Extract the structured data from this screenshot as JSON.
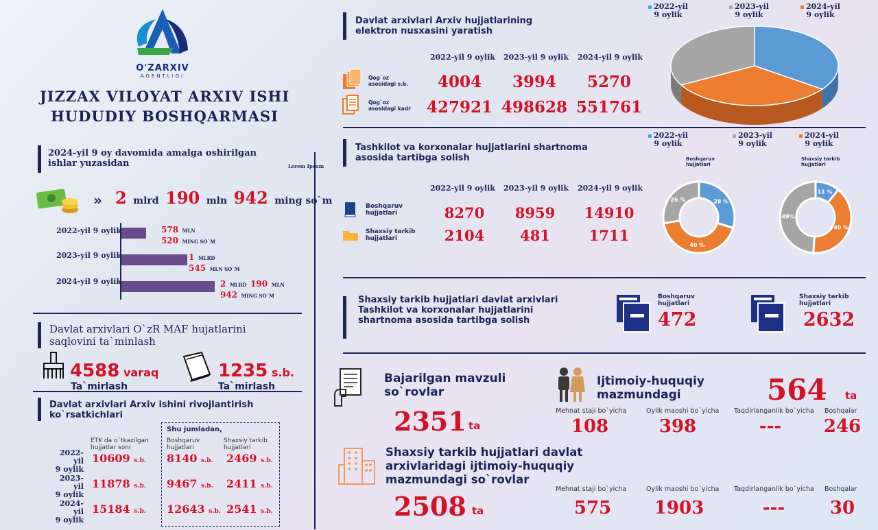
{
  "logo": {
    "name": "O'ZARXIV",
    "sub": "AGENTLIGI"
  },
  "org": {
    "line1": "JIZZAX VILOYAT ARXIV ISHI",
    "line2": "HUDUDIY BOSHQARMASI"
  },
  "left": {
    "s1_title": "2024-yil 9 oy davomida amalga oshirilgan ishlar yuzasidan",
    "lorem": "Lorem Ipsum",
    "total": {
      "a": "2",
      "b": "mlrd",
      "c": "190",
      "d": "mln",
      "e": "942",
      "f": "ming so`m"
    },
    "bars": [
      {
        "label": "2022-yil 9 oylik",
        "value_mln": 578.52,
        "v1": "578",
        "u1": "MLN",
        "v2": "520",
        "u2": "MING SO`M"
      },
      {
        "label": "2023-yil 9 oylik",
        "value_mln": 1545,
        "v1": "1",
        "u1": "MLRD",
        "v2": "545",
        "u2": "MLN SO`M"
      },
      {
        "label": "2024-yil 9 oylik",
        "value_mln": 2190.942,
        "v1": "2",
        "u1": "MLRD",
        "v1b": "190",
        "u1b": "MLN",
        "v2": "942",
        "u2": "MING SO`M"
      }
    ],
    "s2_title": "Davlat arxivlari O`zR MAF hujatlarini saqlovini ta`minlash",
    "s2": {
      "n1": "4588",
      "u1": "varaq",
      "c1": "Ta`mirlash",
      "n2": "1235",
      "u2": "s.b.",
      "c2": "Ta`mirlash"
    },
    "s3_title": "Davlat arxivlari Arxiv ishini rivojlantirish ko`rsatkichlari",
    "s3": {
      "col1": "ETK da o`tkazilgan hujjatlar soni",
      "shu": "Shu jumladan,",
      "col2": "Boshqaruv hujjatlari",
      "col3": "Shaxsiy tarkib hujjatlari",
      "unit": "s.b.",
      "rows": [
        {
          "y1": "2022-yil",
          "y2": "9 oylik",
          "a": "10609",
          "b": "8140",
          "c": "2469"
        },
        {
          "y1": "2023-yil",
          "y2": "9 oylik",
          "a": "11878",
          "b": "9467",
          "c": "2411"
        },
        {
          "y1": "2024-yil",
          "y2": "9 oylik",
          "a": "15184",
          "b": "12643",
          "c": "2541"
        }
      ]
    }
  },
  "right": {
    "years": [
      "2022-yil 9 oylik",
      "2023-yil 9 oylik",
      "2024-yil 9 oylik"
    ],
    "legend": [
      {
        "y": "2022-yil",
        "p": "9 oylik",
        "color": "#3fa7dc"
      },
      {
        "y": "2023-yil",
        "p": "9 oylik",
        "color": "#a8a8a8"
      },
      {
        "y": "2024-yil",
        "p": "9 oylik",
        "color": "#f07c2b"
      }
    ],
    "p1": {
      "title": "Davlat arxivlari Arxiv hujjatlarining elektron nusxasini yaratish",
      "r1": {
        "label": "Qog`oz asosidagi s.b.",
        "v": [
          "4004",
          "3994",
          "5270"
        ]
      },
      "r2": {
        "label": "Qog`oz asosidagi kadr",
        "v": [
          "427921",
          "498628",
          "551761"
        ]
      }
    },
    "p2": {
      "title": "Tashkilot va korxonalar hujjatlarini shartnoma asosida tartibga solish",
      "r1": {
        "label": "Boshqaruv hujjatlari",
        "v": [
          "8270",
          "8959",
          "14910"
        ]
      },
      "r2": {
        "label": "Shaxsiy tarkib hujjatlari",
        "v": [
          "2104",
          "481",
          "1711"
        ]
      },
      "d1": "Boshqaruv hujjatlari",
      "d2": "Shaxsiy tarkib hujjatlari"
    },
    "p3": {
      "title": "Shaxsiy tarkib hujjatlari davlat arxivlari Tashkilot va korxonalar hujjatlarini shartnoma asosida tartibga solish",
      "l1": "Boshqaruv hujjatlari",
      "v1": "472",
      "l2": "Shaxsiy tarkib hujjatlari",
      "v2": "2632"
    },
    "p4": {
      "t1": "Bajarilgan mavzuli so`rovlar",
      "n1": "2351",
      "ta": "ta",
      "t2": "Ijtimoiy-huquqiy mazmundagi",
      "n2": "564",
      "h": [
        "Mehnat staji bo`yicha",
        "Oylik maoshi bo`yicha",
        "Taqdirlanganlik bo`yicha",
        "Boshqalar"
      ],
      "r1": [
        "108",
        "398",
        "---",
        "246"
      ],
      "t3": "Shaxsiy tarkib hujjatlari davlat arxivlaridagi ijtimoiy-huquqiy mazmundagi so`rovlar",
      "n3": "2508",
      "r2": [
        "575",
        "1903",
        "---",
        "30"
      ]
    }
  },
  "chart_data": [
    {
      "type": "pie",
      "title": "",
      "categories": [
        "2022-yil 9 oylik",
        "2023-yil 9 oylik",
        "2024-yil 9 oylik"
      ],
      "values": [
        35,
        33,
        32
      ],
      "colors": [
        "#5b9bd5",
        "#a5a5a5",
        "#ed7d31"
      ]
    },
    {
      "type": "pie",
      "title": "Boshqaruv hujjatlari",
      "categories": [
        "2022-yil 9 oylik",
        "2023-yil 9 oylik",
        "2024-yil 9 oylik"
      ],
      "values": [
        28,
        26,
        40
      ],
      "labels": [
        "28 %",
        "26 %",
        "40 %"
      ]
    },
    {
      "type": "pie",
      "title": "Shaxsiy tarkib hujjatlari",
      "categories": [
        "2022-yil 9 oylik",
        "2023-yil 9 oylik",
        "2024-yil 9 oylik"
      ],
      "values": [
        11,
        49,
        40
      ],
      "labels": [
        "11 %",
        "49%",
        "40 %"
      ]
    }
  ]
}
